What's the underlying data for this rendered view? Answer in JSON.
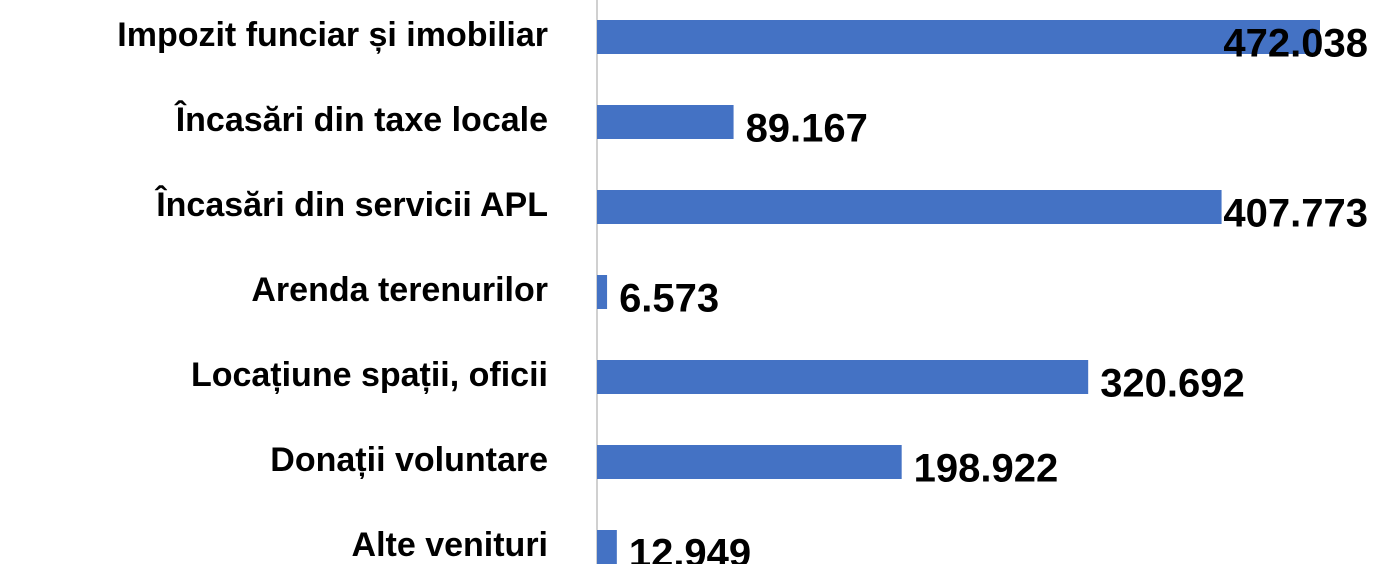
{
  "chart_data": {
    "type": "barh",
    "categories": [
      "Impozit funciar și imobiliar",
      "Încasări din taxe locale",
      "Încasări din servicii APL",
      "Arenda terenurilor",
      "Locațiune spații, oficii",
      "Donații voluntare",
      "Alte venituri"
    ],
    "values": [
      472.038,
      89.167,
      407.773,
      6.573,
      320.692,
      198.922,
      12.949
    ],
    "color": "#4472c4"
  }
}
